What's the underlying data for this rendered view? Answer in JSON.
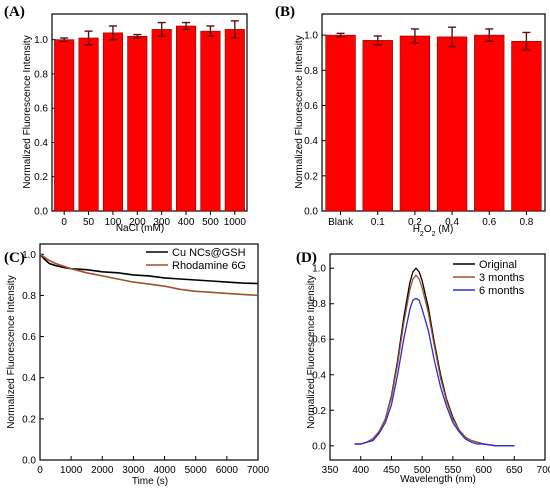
{
  "chart_data": [
    {
      "id": "A",
      "panel_label": "(A)",
      "type": "bar",
      "categories": [
        "0",
        "50",
        "100",
        "200",
        "300",
        "400",
        "500",
        "1000"
      ],
      "values": [
        1.0,
        1.01,
        1.04,
        1.02,
        1.06,
        1.08,
        1.05,
        1.06
      ],
      "errors": [
        0.01,
        0.04,
        0.04,
        0.01,
        0.04,
        0.02,
        0.03,
        0.05
      ],
      "xlabel": "NaCl (mM)",
      "ylabel": "Normalized Fluorescence Intensity",
      "ylim": [
        0.0,
        1.15
      ],
      "yticks": [
        "0.0",
        "0.2",
        "0.4",
        "0.6",
        "0.8",
        "1.0"
      ],
      "colors": {
        "bar": "#ff0000",
        "bar_edge": "#8b0000",
        "error": "#5a1010"
      }
    },
    {
      "id": "B",
      "panel_label": "(B)",
      "type": "bar",
      "categories": [
        "Blank",
        "0.1",
        "0.2",
        "0.4",
        "0.6",
        "0.8"
      ],
      "values": [
        1.0,
        0.97,
        0.995,
        0.99,
        1.0,
        0.965
      ],
      "errors": [
        0.01,
        0.025,
        0.04,
        0.055,
        0.035,
        0.05
      ],
      "xlabel": "H2O2 (M)",
      "xlabel_parts": [
        "H",
        "2",
        "O",
        "2",
        " (M)"
      ],
      "ylabel": "Normalized Fluorescence Intensity",
      "ylim": [
        0.0,
        1.12
      ],
      "yticks": [
        "0.0",
        "0.2",
        "0.4",
        "0.6",
        "0.8",
        "1.0"
      ],
      "colors": {
        "bar": "#ff0000",
        "bar_edge": "#8b0000",
        "error": "#5a1010"
      }
    },
    {
      "id": "C",
      "panel_label": "(C)",
      "type": "line",
      "xlabel": "Time (s)",
      "ylabel": "Normalized Fluorescence Intensity",
      "xlim": [
        0,
        7000
      ],
      "ylim": [
        0.0,
        1.05
      ],
      "xticks": [
        "0",
        "1000",
        "2000",
        "3000",
        "4000",
        "5000",
        "6000",
        "7000"
      ],
      "yticks": [
        "0.0",
        "0.2",
        "0.4",
        "0.6",
        "0.8",
        "1.0"
      ],
      "legend_position": "top-right",
      "series": [
        {
          "name": "Cu NCs@GSH",
          "color": "#000000",
          "x": [
            0,
            150,
            300,
            500,
            800,
            1000,
            1500,
            2000,
            2500,
            3000,
            3500,
            4000,
            4500,
            5000,
            5500,
            6000,
            6500,
            7000
          ],
          "y": [
            1.0,
            0.975,
            0.955,
            0.945,
            0.935,
            0.93,
            0.925,
            0.915,
            0.91,
            0.9,
            0.895,
            0.885,
            0.88,
            0.875,
            0.87,
            0.865,
            0.86,
            0.858
          ]
        },
        {
          "name": "Rhodamine 6G",
          "color": "#a0522d",
          "x": [
            0,
            150,
            300,
            500,
            800,
            1000,
            1500,
            2000,
            2500,
            3000,
            3500,
            4000,
            4500,
            5000,
            5500,
            6000,
            6500,
            7000
          ],
          "y": [
            1.0,
            0.985,
            0.97,
            0.955,
            0.94,
            0.93,
            0.91,
            0.895,
            0.88,
            0.865,
            0.855,
            0.845,
            0.83,
            0.82,
            0.815,
            0.81,
            0.805,
            0.8
          ]
        }
      ]
    },
    {
      "id": "D",
      "panel_label": "(D)",
      "type": "line",
      "xlabel": "Wavelength (nm)",
      "ylabel": "Normalized Fluorescence Intensity",
      "xlim": [
        350,
        700
      ],
      "ylim": [
        -0.08,
        1.08
      ],
      "xticks": [
        "350",
        "400",
        "450",
        "500",
        "550",
        "600",
        "650",
        "700"
      ],
      "yticks": [
        "0.0",
        "0.2",
        "0.4",
        "0.6",
        "0.8",
        "1.0"
      ],
      "legend_position": "top-right",
      "series": [
        {
          "name": "Original",
          "color": "#000000",
          "x": [
            390,
            400,
            410,
            420,
            430,
            440,
            450,
            460,
            470,
            480,
            485,
            490,
            495,
            500,
            510,
            520,
            530,
            540,
            550,
            560,
            570,
            580,
            590,
            600,
            620,
            650
          ],
          "y": [
            0.01,
            0.01,
            0.02,
            0.04,
            0.08,
            0.15,
            0.28,
            0.48,
            0.72,
            0.92,
            0.98,
            1.0,
            0.98,
            0.93,
            0.78,
            0.58,
            0.4,
            0.26,
            0.16,
            0.09,
            0.05,
            0.03,
            0.02,
            0.01,
            0.0,
            0.0
          ]
        },
        {
          "name": "3 months",
          "color": "#a0522d",
          "x": [
            390,
            400,
            410,
            420,
            430,
            440,
            450,
            460,
            470,
            480,
            485,
            490,
            495,
            500,
            510,
            520,
            530,
            540,
            550,
            560,
            570,
            580,
            590,
            600,
            620,
            650
          ],
          "y": [
            0.01,
            0.01,
            0.02,
            0.04,
            0.08,
            0.15,
            0.27,
            0.46,
            0.69,
            0.88,
            0.94,
            0.96,
            0.94,
            0.89,
            0.75,
            0.56,
            0.38,
            0.25,
            0.15,
            0.09,
            0.05,
            0.03,
            0.02,
            0.01,
            0.0,
            0.0
          ]
        },
        {
          "name": "6 months",
          "color": "#2b2bd6",
          "x": [
            390,
            400,
            410,
            420,
            430,
            440,
            450,
            460,
            470,
            480,
            485,
            490,
            495,
            500,
            510,
            520,
            530,
            540,
            550,
            560,
            570,
            580,
            590,
            600,
            620,
            650
          ],
          "y": [
            0.01,
            0.01,
            0.02,
            0.03,
            0.07,
            0.13,
            0.23,
            0.4,
            0.6,
            0.77,
            0.82,
            0.83,
            0.82,
            0.77,
            0.65,
            0.48,
            0.33,
            0.22,
            0.13,
            0.08,
            0.04,
            0.02,
            0.01,
            0.01,
            0.0,
            0.0
          ]
        }
      ]
    }
  ]
}
